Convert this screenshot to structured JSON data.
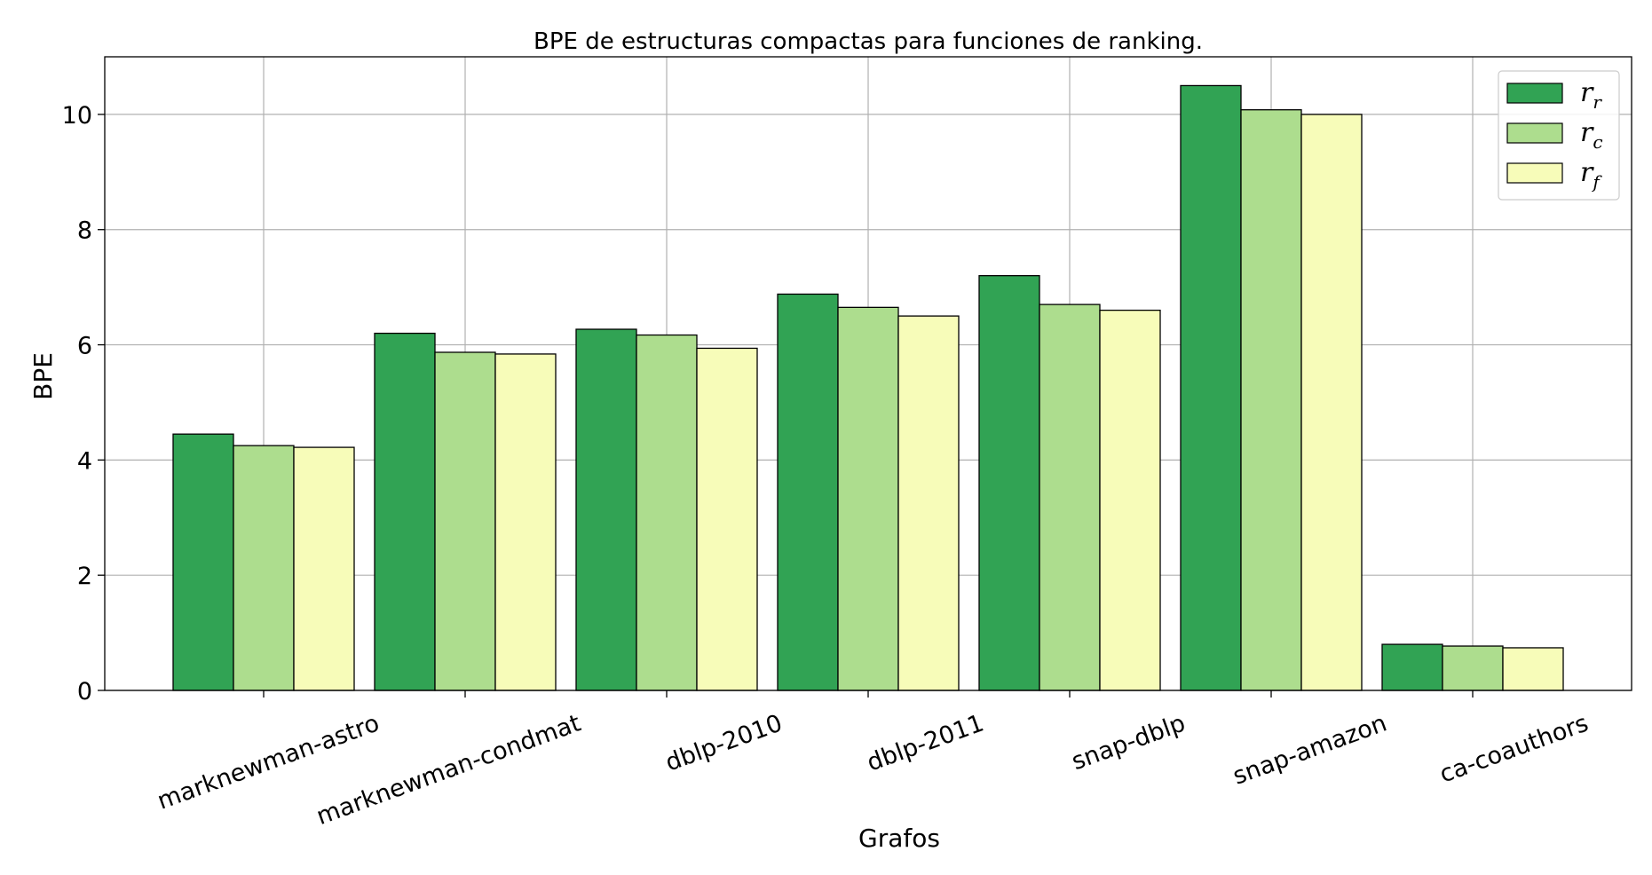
{
  "chart_data": {
    "type": "bar",
    "title": "BPE de estructuras compactas para funciones de ranking.",
    "xlabel": "Grafos",
    "ylabel": "BPE",
    "ylim": [
      0,
      11
    ],
    "yticks": [
      0,
      2,
      4,
      6,
      8,
      10
    ],
    "grid": true,
    "legend_position": "top-right",
    "categories": [
      "marknewman-astro",
      "marknewman-condmat",
      "dblp-2010",
      "dblp-2011",
      "snap-dblp",
      "snap-amazon",
      "ca-coauthors"
    ],
    "series": [
      {
        "name": "r",
        "subscript": "r",
        "color": "#31a354",
        "values": [
          4.45,
          6.2,
          6.27,
          6.88,
          7.2,
          10.5,
          0.8
        ]
      },
      {
        "name": "r",
        "subscript": "c",
        "color": "#addd8e",
        "values": [
          4.25,
          5.87,
          6.17,
          6.65,
          6.7,
          10.08,
          0.77
        ]
      },
      {
        "name": "r",
        "subscript": "f",
        "color": "#f7fcb9",
        "values": [
          4.22,
          5.84,
          5.94,
          6.5,
          6.6,
          10.0,
          0.74
        ]
      }
    ]
  }
}
